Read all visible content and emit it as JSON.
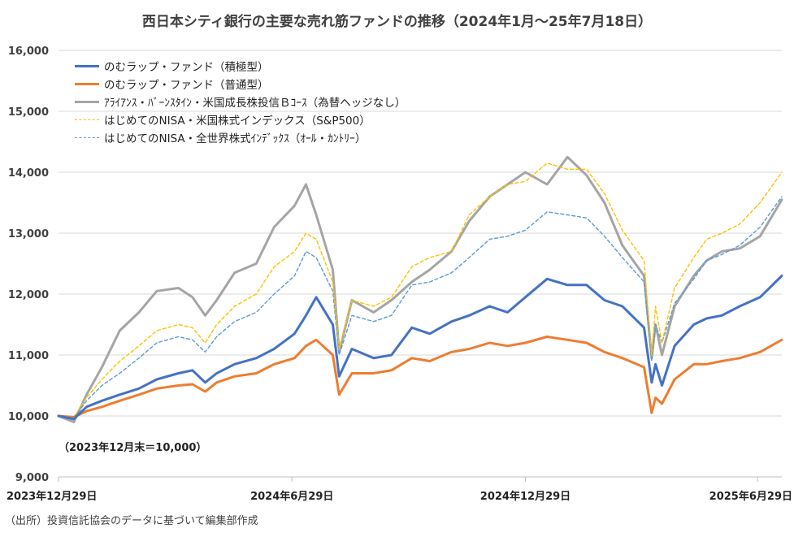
{
  "page": {
    "title": "西日本シティ銀行の主要な売れ筋ファンドの推移（2024年1月～25年7月18日）",
    "baseline_note": "（2023年12月末＝10,000）",
    "source": "（出所）投資信託協会のデータに基づいて編集部作成"
  },
  "chart_data": {
    "type": "line",
    "title": "西日本シティ銀行の主要な売れ筋ファンドの推移（2024年1月～25年7月18日）",
    "xlabel": "",
    "ylabel": "",
    "ylim": [
      9000,
      16000
    ],
    "yticks": [
      9000,
      10000,
      11000,
      12000,
      13000,
      14000,
      15000,
      16000
    ],
    "ytick_labels": [
      "9,000",
      "10,000",
      "11,000",
      "12,000",
      "13,000",
      "14,000",
      "15,000",
      "16,000"
    ],
    "x_range": [
      "2023-12-29",
      "2025-07-18"
    ],
    "x_ticks": [
      {
        "date": "2023-12-29",
        "label": "2023年12月29日"
      },
      {
        "date": "2024-06-29",
        "label": "2024年6月29日"
      },
      {
        "date": "2024-12-29",
        "label": "2024年12月29日"
      },
      {
        "date": "2025-06-29",
        "label": "2025年6月29日"
      }
    ],
    "grid": "horizontal",
    "legend_position": "top-left",
    "series": [
      {
        "name": "のむラップ・ファンド（積極型）",
        "color": "#4472C4",
        "style": "solid",
        "points": [
          [
            "2023-12-29",
            10000
          ],
          [
            "2024-01-10",
            9950
          ],
          [
            "2024-01-20",
            10150
          ],
          [
            "2024-02-01",
            10250
          ],
          [
            "2024-02-15",
            10350
          ],
          [
            "2024-03-01",
            10450
          ],
          [
            "2024-03-15",
            10600
          ],
          [
            "2024-04-01",
            10700
          ],
          [
            "2024-04-12",
            10750
          ],
          [
            "2024-04-22",
            10550
          ],
          [
            "2024-05-01",
            10700
          ],
          [
            "2024-05-15",
            10850
          ],
          [
            "2024-06-01",
            10950
          ],
          [
            "2024-06-15",
            11100
          ],
          [
            "2024-07-01",
            11350
          ],
          [
            "2024-07-10",
            11650
          ],
          [
            "2024-07-18",
            11950
          ],
          [
            "2024-07-31",
            11500
          ],
          [
            "2024-08-05",
            10650
          ],
          [
            "2024-08-15",
            11100
          ],
          [
            "2024-09-01",
            10950
          ],
          [
            "2024-09-15",
            11000
          ],
          [
            "2024-10-01",
            11450
          ],
          [
            "2024-10-15",
            11350
          ],
          [
            "2024-11-01",
            11550
          ],
          [
            "2024-11-15",
            11650
          ],
          [
            "2024-12-01",
            11800
          ],
          [
            "2024-12-15",
            11700
          ],
          [
            "2024-12-29",
            11950
          ],
          [
            "2025-01-15",
            12250
          ],
          [
            "2025-01-31",
            12150
          ],
          [
            "2025-02-15",
            12150
          ],
          [
            "2025-03-01",
            11900
          ],
          [
            "2025-03-15",
            11800
          ],
          [
            "2025-04-01",
            11450
          ],
          [
            "2025-04-07",
            10550
          ],
          [
            "2025-04-10",
            10850
          ],
          [
            "2025-04-15",
            10500
          ],
          [
            "2025-04-25",
            11150
          ],
          [
            "2025-05-10",
            11500
          ],
          [
            "2025-05-20",
            11600
          ],
          [
            "2025-06-01",
            11650
          ],
          [
            "2025-06-15",
            11800
          ],
          [
            "2025-07-01",
            11950
          ],
          [
            "2025-07-18",
            12300
          ]
        ]
      },
      {
        "name": "のむラップ・ファンド（普通型）",
        "color": "#ED7D31",
        "style": "solid",
        "points": [
          [
            "2023-12-29",
            10000
          ],
          [
            "2024-01-10",
            9980
          ],
          [
            "2024-01-20",
            10080
          ],
          [
            "2024-02-01",
            10150
          ],
          [
            "2024-02-15",
            10250
          ],
          [
            "2024-03-01",
            10350
          ],
          [
            "2024-03-15",
            10450
          ],
          [
            "2024-04-01",
            10500
          ],
          [
            "2024-04-12",
            10520
          ],
          [
            "2024-04-22",
            10400
          ],
          [
            "2024-05-01",
            10550
          ],
          [
            "2024-05-15",
            10650
          ],
          [
            "2024-06-01",
            10700
          ],
          [
            "2024-06-15",
            10850
          ],
          [
            "2024-07-01",
            10950
          ],
          [
            "2024-07-10",
            11150
          ],
          [
            "2024-07-18",
            11250
          ],
          [
            "2024-07-31",
            11000
          ],
          [
            "2024-08-05",
            10350
          ],
          [
            "2024-08-15",
            10700
          ],
          [
            "2024-09-01",
            10700
          ],
          [
            "2024-09-15",
            10750
          ],
          [
            "2024-10-01",
            10950
          ],
          [
            "2024-10-15",
            10900
          ],
          [
            "2024-11-01",
            11050
          ],
          [
            "2024-11-15",
            11100
          ],
          [
            "2024-12-01",
            11200
          ],
          [
            "2024-12-15",
            11150
          ],
          [
            "2024-12-29",
            11200
          ],
          [
            "2025-01-15",
            11300
          ],
          [
            "2025-01-31",
            11250
          ],
          [
            "2025-02-15",
            11200
          ],
          [
            "2025-03-01",
            11050
          ],
          [
            "2025-03-15",
            10950
          ],
          [
            "2025-04-01",
            10800
          ],
          [
            "2025-04-07",
            10050
          ],
          [
            "2025-04-10",
            10300
          ],
          [
            "2025-04-15",
            10200
          ],
          [
            "2025-04-25",
            10600
          ],
          [
            "2025-05-10",
            10850
          ],
          [
            "2025-05-20",
            10850
          ],
          [
            "2025-06-01",
            10900
          ],
          [
            "2025-06-15",
            10950
          ],
          [
            "2025-07-01",
            11050
          ],
          [
            "2025-07-18",
            11250
          ]
        ]
      },
      {
        "name": "ｱﾗｲｱﾝｽ・ﾊﾞｰﾝｽﾀｲﾝ・米国成長株投信Ｂｺｰｽ（為替ヘッジなし）",
        "color": "#A5A5A5",
        "style": "solid",
        "points": [
          [
            "2023-12-29",
            10000
          ],
          [
            "2024-01-10",
            9900
          ],
          [
            "2024-01-20",
            10350
          ],
          [
            "2024-02-01",
            10800
          ],
          [
            "2024-02-15",
            11400
          ],
          [
            "2024-03-01",
            11700
          ],
          [
            "2024-03-15",
            12050
          ],
          [
            "2024-04-01",
            12100
          ],
          [
            "2024-04-12",
            11950
          ],
          [
            "2024-04-22",
            11650
          ],
          [
            "2024-05-01",
            11900
          ],
          [
            "2024-05-15",
            12350
          ],
          [
            "2024-06-01",
            12500
          ],
          [
            "2024-06-15",
            13100
          ],
          [
            "2024-07-01",
            13450
          ],
          [
            "2024-07-10",
            13800
          ],
          [
            "2024-07-18",
            13300
          ],
          [
            "2024-07-31",
            12400
          ],
          [
            "2024-08-05",
            11050
          ],
          [
            "2024-08-15",
            11900
          ],
          [
            "2024-09-01",
            11700
          ],
          [
            "2024-09-15",
            11900
          ],
          [
            "2024-10-01",
            12200
          ],
          [
            "2024-10-15",
            12400
          ],
          [
            "2024-11-01",
            12700
          ],
          [
            "2024-11-15",
            13200
          ],
          [
            "2024-12-01",
            13600
          ],
          [
            "2024-12-15",
            13800
          ],
          [
            "2024-12-29",
            14000
          ],
          [
            "2025-01-15",
            13800
          ],
          [
            "2025-01-31",
            14250
          ],
          [
            "2025-02-15",
            13950
          ],
          [
            "2025-03-01",
            13500
          ],
          [
            "2025-03-15",
            12800
          ],
          [
            "2025-04-01",
            12300
          ],
          [
            "2025-04-07",
            10950
          ],
          [
            "2025-04-10",
            11500
          ],
          [
            "2025-04-15",
            11000
          ],
          [
            "2025-04-25",
            11800
          ],
          [
            "2025-05-10",
            12300
          ],
          [
            "2025-05-20",
            12550
          ],
          [
            "2025-06-01",
            12700
          ],
          [
            "2025-06-15",
            12750
          ],
          [
            "2025-07-01",
            12950
          ],
          [
            "2025-07-18",
            13550
          ]
        ]
      },
      {
        "name": "はじめてのNISA・米国株式インデックス（S&P500）",
        "color": "#FFC000",
        "style": "dashed",
        "points": [
          [
            "2023-12-29",
            10000
          ],
          [
            "2024-01-10",
            9980
          ],
          [
            "2024-01-20",
            10300
          ],
          [
            "2024-02-01",
            10600
          ],
          [
            "2024-02-15",
            10900
          ],
          [
            "2024-03-01",
            11150
          ],
          [
            "2024-03-15",
            11400
          ],
          [
            "2024-04-01",
            11500
          ],
          [
            "2024-04-12",
            11450
          ],
          [
            "2024-04-22",
            11200
          ],
          [
            "2024-05-01",
            11500
          ],
          [
            "2024-05-15",
            11800
          ],
          [
            "2024-06-01",
            12000
          ],
          [
            "2024-06-15",
            12450
          ],
          [
            "2024-07-01",
            12700
          ],
          [
            "2024-07-10",
            13000
          ],
          [
            "2024-07-18",
            12900
          ],
          [
            "2024-07-31",
            12200
          ],
          [
            "2024-08-05",
            11100
          ],
          [
            "2024-08-15",
            11900
          ],
          [
            "2024-09-01",
            11800
          ],
          [
            "2024-09-15",
            11950
          ],
          [
            "2024-10-01",
            12450
          ],
          [
            "2024-10-15",
            12600
          ],
          [
            "2024-11-01",
            12700
          ],
          [
            "2024-11-15",
            13300
          ],
          [
            "2024-12-01",
            13600
          ],
          [
            "2024-12-15",
            13800
          ],
          [
            "2024-12-29",
            13850
          ],
          [
            "2025-01-15",
            14150
          ],
          [
            "2025-01-31",
            14050
          ],
          [
            "2025-02-15",
            14050
          ],
          [
            "2025-03-01",
            13650
          ],
          [
            "2025-03-15",
            13050
          ],
          [
            "2025-04-01",
            12550
          ],
          [
            "2025-04-07",
            11000
          ],
          [
            "2025-04-10",
            11800
          ],
          [
            "2025-04-15",
            11200
          ],
          [
            "2025-04-25",
            12100
          ],
          [
            "2025-05-10",
            12600
          ],
          [
            "2025-05-20",
            12900
          ],
          [
            "2025-06-01",
            13000
          ],
          [
            "2025-06-15",
            13150
          ],
          [
            "2025-07-01",
            13500
          ],
          [
            "2025-07-18",
            14000
          ]
        ]
      },
      {
        "name": "はじめてのNISA・全世界株式ｲﾝﾃﾞｯｸｽ（ｵｰﾙ・ｶﾝﾄﾘｰ）",
        "color": "#5B9BD5",
        "style": "dashed",
        "points": [
          [
            "2023-12-29",
            10000
          ],
          [
            "2024-01-10",
            9960
          ],
          [
            "2024-01-20",
            10250
          ],
          [
            "2024-02-01",
            10500
          ],
          [
            "2024-02-15",
            10700
          ],
          [
            "2024-03-01",
            10950
          ],
          [
            "2024-03-15",
            11200
          ],
          [
            "2024-04-01",
            11300
          ],
          [
            "2024-04-12",
            11250
          ],
          [
            "2024-04-22",
            11050
          ],
          [
            "2024-05-01",
            11300
          ],
          [
            "2024-05-15",
            11550
          ],
          [
            "2024-06-01",
            11700
          ],
          [
            "2024-06-15",
            12000
          ],
          [
            "2024-07-01",
            12300
          ],
          [
            "2024-07-10",
            12700
          ],
          [
            "2024-07-18",
            12600
          ],
          [
            "2024-07-31",
            12050
          ],
          [
            "2024-08-05",
            11000
          ],
          [
            "2024-08-15",
            11650
          ],
          [
            "2024-09-01",
            11550
          ],
          [
            "2024-09-15",
            11650
          ],
          [
            "2024-10-01",
            12150
          ],
          [
            "2024-10-15",
            12200
          ],
          [
            "2024-11-01",
            12350
          ],
          [
            "2024-11-15",
            12600
          ],
          [
            "2024-12-01",
            12900
          ],
          [
            "2024-12-15",
            12950
          ],
          [
            "2024-12-29",
            13050
          ],
          [
            "2025-01-15",
            13350
          ],
          [
            "2025-01-31",
            13300
          ],
          [
            "2025-02-15",
            13250
          ],
          [
            "2025-03-01",
            12950
          ],
          [
            "2025-03-15",
            12600
          ],
          [
            "2025-04-01",
            12200
          ],
          [
            "2025-04-07",
            10900
          ],
          [
            "2025-04-10",
            11500
          ],
          [
            "2025-04-15",
            11200
          ],
          [
            "2025-04-25",
            11850
          ],
          [
            "2025-05-10",
            12250
          ],
          [
            "2025-05-20",
            12550
          ],
          [
            "2025-06-01",
            12650
          ],
          [
            "2025-06-15",
            12800
          ],
          [
            "2025-07-01",
            13100
          ],
          [
            "2025-07-18",
            13600
          ]
        ]
      }
    ]
  }
}
